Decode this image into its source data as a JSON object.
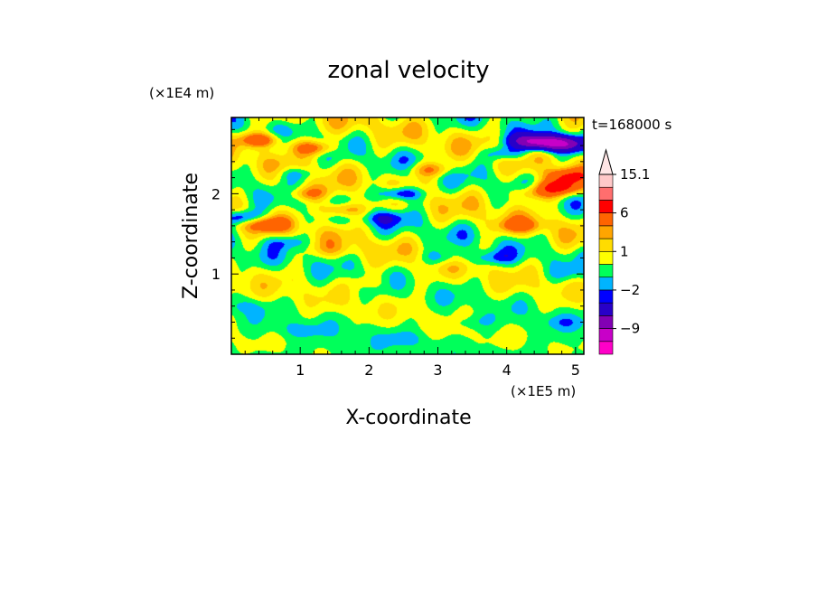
{
  "chart_data": {
    "type": "heatmap",
    "title": "zonal velocity",
    "xlabel": "X-coordinate",
    "ylabel": "Z-coordinate",
    "x_unit": "(×1E5 m)",
    "y_unit": "(×1E4 m)",
    "time_label": "t=168000 s",
    "xlim": [
      0,
      5.12
    ],
    "ylim": [
      0,
      2.95
    ],
    "x_ticks": [
      1,
      2,
      3,
      4,
      5
    ],
    "y_ticks": [
      1,
      2
    ],
    "colorbar": {
      "extend": "max",
      "levels": [
        -15,
        -12,
        -9,
        -6,
        -3,
        -2,
        -1,
        0,
        1,
        2,
        3,
        6,
        9,
        12,
        15.1
      ],
      "colors": [
        "#ff00c8",
        "#c800c8",
        "#8200b4",
        "#2800c8",
        "#0000ff",
        "#00b4ff",
        "#00ff5a",
        "#ffff00",
        "#ffdc00",
        "#ffa500",
        "#ff6400",
        "#ff0000",
        "#ff6e6e",
        "#ffc8c8",
        "#ffe6e6"
      ],
      "tick_labels": [
        {
          "value": 15.1,
          "text": "15.1"
        },
        {
          "value": 6,
          "text": "6"
        },
        {
          "value": 1,
          "text": "1"
        },
        {
          "value": -2,
          "text": "-2"
        },
        {
          "value": -9,
          "text": "-9"
        }
      ]
    },
    "features": [
      {
        "x": 0.42,
        "z": 2.67,
        "u": 5
      },
      {
        "x": 1.2,
        "z": 2.57,
        "u": 4
      },
      {
        "x": 2.9,
        "z": 2.3,
        "u": 3
      },
      {
        "x": 4.0,
        "z": 2.5,
        "u": -3
      },
      {
        "x": 4.4,
        "z": 2.65,
        "u": -9
      },
      {
        "x": 4.8,
        "z": 2.62,
        "u": -8
      },
      {
        "x": 4.75,
        "z": 2.08,
        "u": 7
      },
      {
        "x": 4.9,
        "z": 2.22,
        "u": 5
      },
      {
        "x": 4.4,
        "z": 2.0,
        "u": 3
      },
      {
        "x": 0.15,
        "z": 1.7,
        "u": -4
      },
      {
        "x": 0.5,
        "z": 1.62,
        "u": 4
      },
      {
        "x": 0.95,
        "z": 2.25,
        "u": -2
      },
      {
        "x": 1.1,
        "z": 2.0,
        "u": 3
      },
      {
        "x": 0.8,
        "z": 1.4,
        "u": -2
      },
      {
        "x": 1.6,
        "z": 1.8,
        "u": 4
      },
      {
        "x": 2.45,
        "z": 2.0,
        "u": -5
      },
      {
        "x": 2.2,
        "z": 1.7,
        "u": -2
      },
      {
        "x": 3.1,
        "z": 1.2,
        "u": -2
      },
      {
        "x": 4.2,
        "z": 1.6,
        "u": 3
      },
      {
        "x": 3.8,
        "z": 1.2,
        "u": -2
      },
      {
        "x": 4.9,
        "z": 1.0,
        "u": -1
      },
      {
        "x": 4.8,
        "z": 0.4,
        "u": -1
      },
      {
        "x": 3.5,
        "z": 0.4,
        "u": -1
      },
      {
        "x": 2.5,
        "z": 0.2,
        "u": -1
      },
      {
        "x": 1.0,
        "z": 0.3,
        "u": -1
      },
      {
        "x": 0.2,
        "z": 0.6,
        "u": -1
      },
      {
        "x": 2.0,
        "z": 0.9,
        "u": 1
      },
      {
        "x": 1.5,
        "z": 1.3,
        "u": 1
      }
    ]
  }
}
